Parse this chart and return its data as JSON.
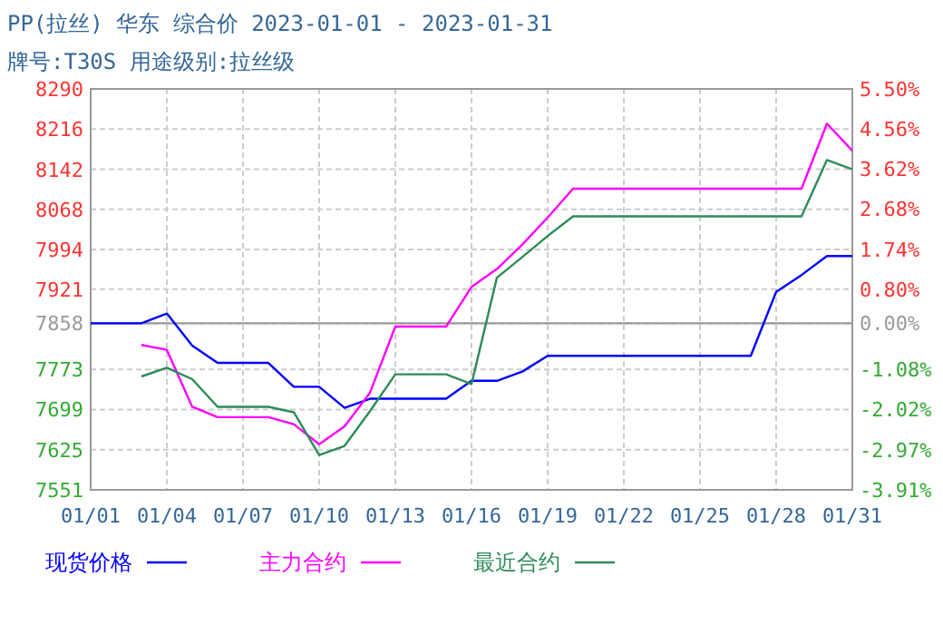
{
  "chart_data": {
    "type": "line",
    "title": "PP(拉丝) 华东 综合价 2023-01-01 - 2023-01-31",
    "subtitle": "牌号:T30S 用途级别:拉丝级",
    "categories": [
      "01/01",
      null,
      null,
      "01/04",
      null,
      null,
      "01/07",
      null,
      null,
      "01/10",
      null,
      null,
      "01/13",
      null,
      null,
      "01/16",
      null,
      null,
      "01/19",
      null,
      null,
      "01/22",
      null,
      null,
      "01/25",
      null,
      null,
      "01/28",
      null,
      null,
      "01/31"
    ],
    "series": [
      {
        "name": "现货价格",
        "color": "#0000ff",
        "values": [
          7858,
          7858,
          7858,
          7876,
          7817,
          7785,
          7785,
          7785,
          7741,
          7741,
          7702,
          7719,
          7719,
          7719,
          7719,
          7752,
          7752,
          7769,
          7798,
          7798,
          7798,
          7798,
          7798,
          7798,
          7798,
          7798,
          7798,
          7916,
          7947,
          7982,
          7982
        ]
      },
      {
        "name": "主力合约",
        "color": "#ff00ff",
        "values": [
          null,
          null,
          7818,
          7809,
          7704,
          7685,
          7685,
          7685,
          7672,
          7635,
          7668,
          7730,
          7852,
          7852,
          7852,
          7925,
          7958,
          8003,
          8053,
          8106,
          8106,
          8106,
          8106,
          8106,
          8106,
          8106,
          8106,
          8106,
          8106,
          8226,
          8176
        ]
      },
      {
        "name": "最近合约",
        "color": "#2e8b57",
        "values": [
          null,
          null,
          7760,
          7776,
          7755,
          7704,
          7704,
          7704,
          7694,
          7615,
          7632,
          7696,
          7764,
          7764,
          7764,
          7746,
          7942,
          7980,
          8019,
          8055,
          8055,
          8055,
          8055,
          8055,
          8055,
          8055,
          8055,
          8055,
          8055,
          8159,
          8142
        ]
      }
    ],
    "ylim": [
      7551,
      8290
    ],
    "yticks": [
      7551,
      7625,
      7699,
      7773,
      7858,
      7921,
      7994,
      8068,
      8142,
      8216,
      8290
    ],
    "y2lim": [
      -3.91,
      5.5
    ],
    "y2ticks": [
      {
        "value": -3.91,
        "label": "-3.91%"
      },
      {
        "value": -2.97,
        "label": "-2.97%"
      },
      {
        "value": -2.02,
        "label": "-2.02%"
      },
      {
        "value": -1.08,
        "label": "-1.08%"
      },
      {
        "value": 0,
        "label": "0.00%"
      },
      {
        "value": 0.8,
        "label": "0.80%"
      },
      {
        "value": 1.74,
        "label": "1.74%"
      },
      {
        "value": 2.68,
        "label": "2.68%"
      },
      {
        "value": 3.62,
        "label": "3.62%"
      },
      {
        "value": 4.56,
        "label": "4.56%"
      },
      {
        "value": 5.5,
        "label": "5.50%"
      }
    ],
    "ref_lines": [
      {
        "axis": "y",
        "value": 7858,
        "color": "#999999"
      }
    ],
    "grid": true,
    "legend": "bottom",
    "marker": "none",
    "line_style": "solid"
  }
}
